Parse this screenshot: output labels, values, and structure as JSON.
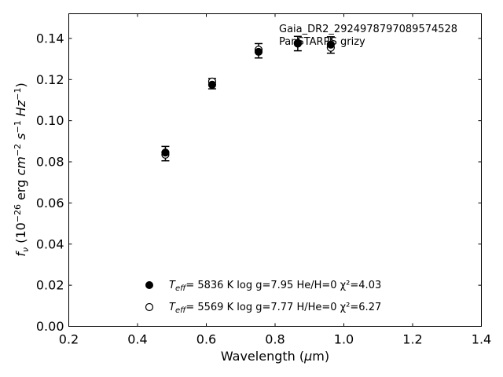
{
  "chart_data": {
    "type": "scatter",
    "annotations": [
      "Gaia_DR2_2924978797089574528",
      "PanSTARRS grizy"
    ],
    "xlabel": "Wavelength (μm)",
    "ylabel": "f_ν (10^-26 erg cm^-2 s^-1 Hz^-1)",
    "xlim": [
      0.2,
      1.4
    ],
    "ylim": [
      0.0,
      0.152
    ],
    "xticks": [
      "0.2",
      "0.4",
      "0.6",
      "0.8",
      "1.0",
      "1.2",
      "1.4"
    ],
    "yticks": [
      "0.00",
      "0.02",
      "0.04",
      "0.06",
      "0.08",
      "0.10",
      "0.12",
      "0.14"
    ],
    "grid": false,
    "legend_position": "bottom-center",
    "observed": {
      "x": [
        0.481,
        0.617,
        0.752,
        0.866,
        0.962
      ],
      "y": [
        0.084,
        0.118,
        0.134,
        0.1375,
        0.1368
      ],
      "yerr": [
        0.0035,
        0.0025,
        0.0035,
        0.0035,
        0.004
      ]
    },
    "series": [
      {
        "marker": "filled",
        "legend": {
          "teff": "5836 K",
          "logg": "log g=7.95",
          "comp": "He/H=0",
          "chi2": "χ²=4.03"
        },
        "x": [
          0.481,
          0.617,
          0.752,
          0.866,
          0.962
        ],
        "y": [
          0.0845,
          0.1175,
          0.1335,
          0.1375,
          0.137
        ]
      },
      {
        "marker": "open",
        "legend": {
          "teff": "5569 K",
          "logg": "log g=7.77",
          "comp": "H/He=0",
          "chi2": "χ²=6.27"
        },
        "x": [
          0.481,
          0.617,
          0.752,
          0.866,
          0.962
        ],
        "y": [
          0.0835,
          0.119,
          0.1345,
          0.1378,
          0.1355
        ]
      }
    ]
  }
}
